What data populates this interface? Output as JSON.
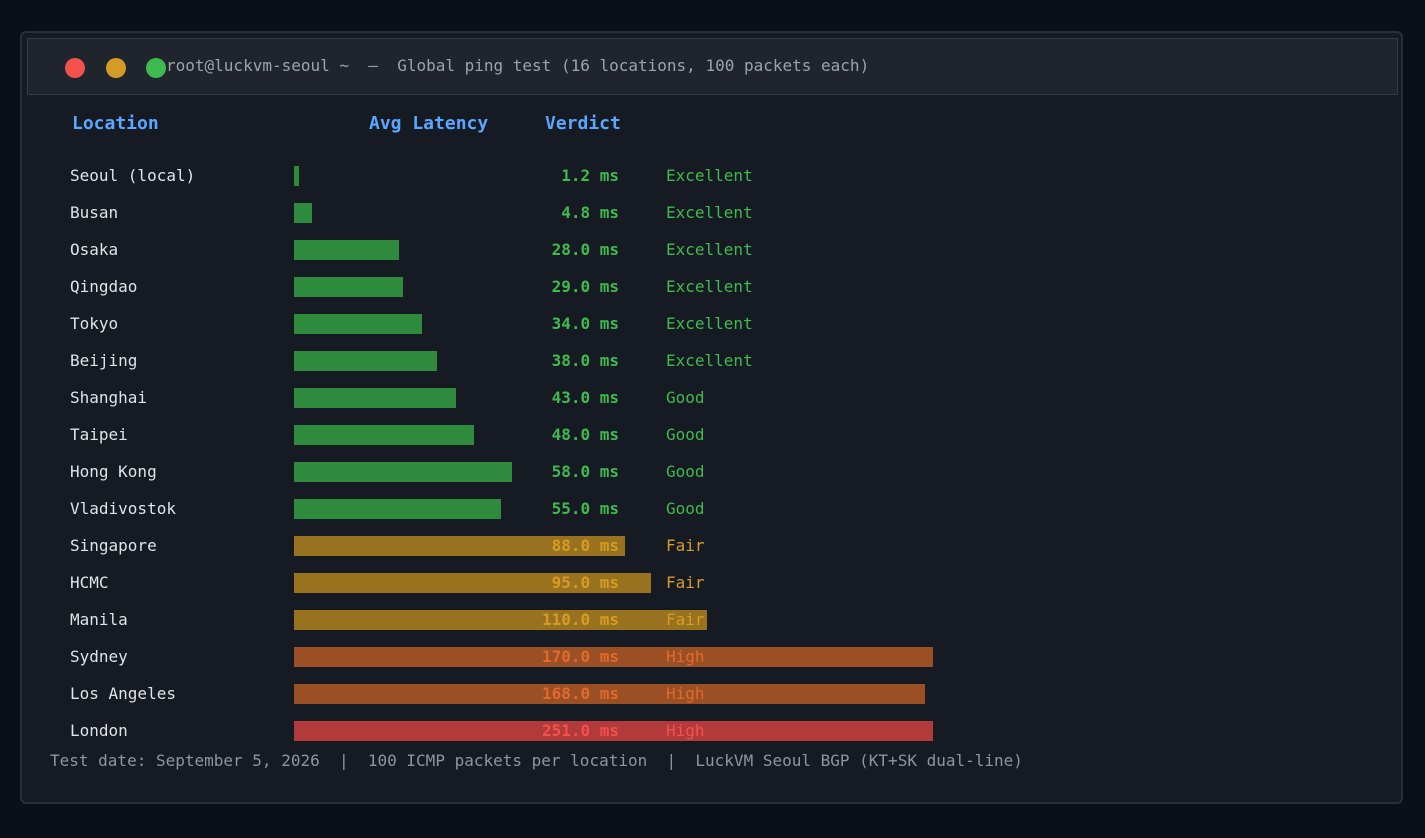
{
  "window": {
    "title": "root@luckvm-seoul ~  —  Global ping test (16 locations, 100 packets each)"
  },
  "headers": {
    "location": "Location",
    "latency": "Avg Latency",
    "verdict": "Verdict"
  },
  "colors": {
    "Excellent": "#2e8b3e",
    "Good": "#2e8b3e",
    "Fair": "#997220",
    "High": "#9a5024",
    "Critical": "#b23a3a",
    "text_excellent": "#3fba4e",
    "text_fair": "#d49c25",
    "text_high": "#e06a2e",
    "text_critical": "#f2514e"
  },
  "chart_data": {
    "type": "bar",
    "orientation": "horizontal",
    "unit": "ms",
    "bar_axis_max": 170,
    "rows": [
      {
        "location": "Seoul (local)",
        "value": 1.2,
        "label": "1.2 ms",
        "verdict": "Excellent",
        "tier": "excellent"
      },
      {
        "location": "Busan",
        "value": 4.8,
        "label": "4.8 ms",
        "verdict": "Excellent",
        "tier": "excellent"
      },
      {
        "location": "Osaka",
        "value": 28.0,
        "label": "28.0 ms",
        "verdict": "Excellent",
        "tier": "excellent"
      },
      {
        "location": "Qingdao",
        "value": 29.0,
        "label": "29.0 ms",
        "verdict": "Excellent",
        "tier": "excellent"
      },
      {
        "location": "Tokyo",
        "value": 34.0,
        "label": "34.0 ms",
        "verdict": "Excellent",
        "tier": "excellent"
      },
      {
        "location": "Beijing",
        "value": 38.0,
        "label": "38.0 ms",
        "verdict": "Excellent",
        "tier": "excellent"
      },
      {
        "location": "Shanghai",
        "value": 43.0,
        "label": "43.0 ms",
        "verdict": "Good",
        "tier": "excellent"
      },
      {
        "location": "Taipei",
        "value": 48.0,
        "label": "48.0 ms",
        "verdict": "Good",
        "tier": "excellent"
      },
      {
        "location": "Hong Kong",
        "value": 58.0,
        "label": "58.0 ms",
        "verdict": "Good",
        "tier": "excellent"
      },
      {
        "location": "Vladivostok",
        "value": 55.0,
        "label": "55.0 ms",
        "verdict": "Good",
        "tier": "excellent"
      },
      {
        "location": "Singapore",
        "value": 88.0,
        "label": "88.0 ms",
        "verdict": "Fair",
        "tier": "fair"
      },
      {
        "location": "HCMC",
        "value": 95.0,
        "label": "95.0 ms",
        "verdict": "Fair",
        "tier": "fair"
      },
      {
        "location": "Manila",
        "value": 110.0,
        "label": "110.0 ms",
        "verdict": "Fair",
        "tier": "fair"
      },
      {
        "location": "Sydney",
        "value": 170.0,
        "label": "170.0 ms",
        "verdict": "High",
        "tier": "high"
      },
      {
        "location": "Los Angeles",
        "value": 168.0,
        "label": "168.0 ms",
        "verdict": "High",
        "tier": "high"
      },
      {
        "location": "London",
        "value": 251.0,
        "label": "251.0 ms",
        "verdict": "High",
        "tier": "critical"
      }
    ]
  },
  "footer": {
    "text": "Test date: September 5, 2026  |  100 ICMP packets per location  |  LuckVM Seoul BGP (KT+SK dual-line)"
  }
}
